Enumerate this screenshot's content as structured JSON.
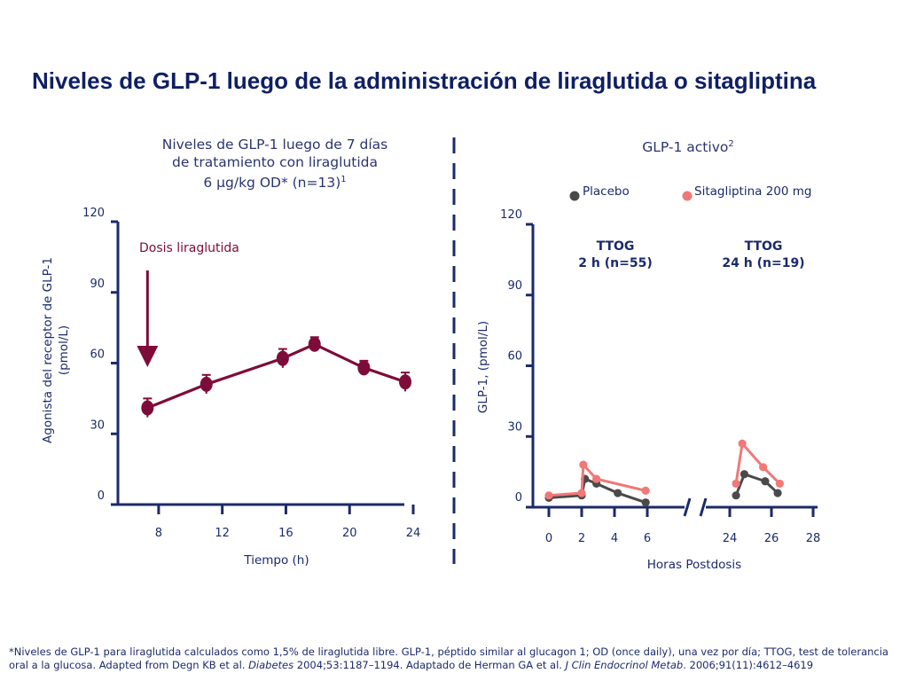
{
  "title": "Niveles de GLP-1 luego de la administración de liraglutida o sitagliptina",
  "left_subtitle": {
    "line1": "Niveles de GLP-1 luego de 7 días",
    "line2": "de tratamiento con liraglutida",
    "line3": "6 µg/kg OD* (n=13)",
    "sup": "1"
  },
  "right_subtitle": {
    "text": "GLP-1 activo",
    "sup": "2"
  },
  "footnote": {
    "part1": "*Niveles de GLP-1 para liraglutida calculados como 1,5% de liraglutida libre. GLP-1, péptido similar al glucagon 1; OD (once daily), una vez por día; TTOG, test de tolerancia oral a la glucosa. Adapted from Degn KB et al. ",
    "journal1": "Diabetes",
    "part2": " 2004;53:1187–1194. Adaptado de Herman GA et al. ",
    "journal2": "J Clin Endocrinol Metab",
    "part3": ". 2006;91(11):4612–4619"
  },
  "colors": {
    "liraglutide": "#7e0c3a",
    "placebo": "#4a4a4a",
    "sitagliptin": "#f07878",
    "axis": "#1b2a6b"
  },
  "chart_data": [
    {
      "type": "line",
      "xlabel": "Tiempo (h)",
      "ylabel_line1": "Agonista del receptor de GLP-1",
      "ylabel_line2": "(pmol/L)",
      "xlim": [
        6,
        24
      ],
      "ylim": [
        0,
        120
      ],
      "xticks": [
        8,
        12,
        16,
        20,
        24
      ],
      "yticks": [
        0,
        30,
        60,
        90,
        120
      ],
      "annotation": "Dosis liraglutida",
      "dose_time": 7.3,
      "series": [
        {
          "name": "Liraglutida",
          "x": [
            7.3,
            11,
            15.8,
            17.8,
            20.9,
            23.5
          ],
          "values": [
            41,
            51,
            62,
            68,
            58,
            52
          ],
          "err": [
            4,
            4,
            4,
            3,
            3,
            4
          ]
        }
      ]
    },
    {
      "type": "line",
      "xlabel": "Horas Postdosis",
      "ylabel": "GLP-1, (pmol/L)",
      "ylim": [
        0,
        120
      ],
      "yticks": [
        0,
        30,
        60,
        90,
        120
      ],
      "xticks_seg1": [
        0,
        2,
        4,
        6
      ],
      "xticks_seg2": [
        24,
        26,
        28
      ],
      "annotation1": {
        "line1": "TTOG",
        "line2": "2 h (n=55)"
      },
      "annotation2": {
        "line1": "TTOG",
        "line2": "24 h (n=19)"
      },
      "legend": [
        "Placebo",
        "Sitagliptina 200 mg"
      ],
      "series": [
        {
          "name": "Placebo",
          "seg1": {
            "x": [
              0,
              2,
              2.2,
              2.9,
              4.2,
              5.9
            ],
            "values": [
              4,
              5,
              12,
              10,
              6,
              2
            ]
          },
          "seg2": {
            "x": [
              24.3,
              24.7,
              25.7,
              26.3
            ],
            "values": [
              5,
              14,
              11,
              6
            ]
          }
        },
        {
          "name": "Sitagliptina 200 mg",
          "seg1": {
            "x": [
              0,
              2,
              2.1,
              2.9,
              5.9
            ],
            "values": [
              5,
              6,
              18,
              12,
              7
            ]
          },
          "seg2": {
            "x": [
              24.3,
              24.6,
              25.6,
              26.4
            ],
            "values": [
              10,
              27,
              17,
              10
            ]
          }
        }
      ]
    }
  ]
}
